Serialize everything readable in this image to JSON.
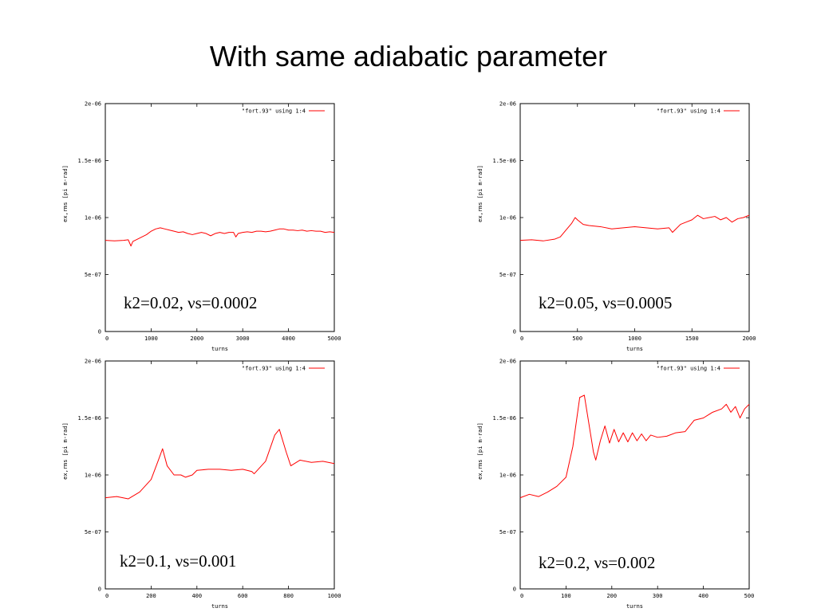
{
  "slide": {
    "title": "With same adiabatic parameter"
  },
  "chart_data": [
    {
      "type": "line",
      "annotation": "k2=0.02, νs=0.0002",
      "xlabel": "turns",
      "ylabel": "ex,rms [pi m-rad]",
      "xlim": [
        0,
        5000
      ],
      "ylim": [
        0,
        2e-06
      ],
      "xticks": [
        0,
        1000,
        2000,
        3000,
        4000,
        5000
      ],
      "xtick_labels": [
        "0",
        "1000",
        "2000",
        "3000",
        "4000",
        "5000"
      ],
      "yticks": [
        0,
        5e-07,
        1e-06,
        1.5e-06,
        2e-06
      ],
      "ytick_labels": [
        "0",
        "5e-07",
        "1e-06",
        "1.5e-06",
        "2e-06"
      ],
      "legend_position": "top-right",
      "series": [
        {
          "name": "\"fort.93\" using 1:4",
          "color": "#ff0000",
          "x": [
            0,
            200,
            400,
            500,
            560,
            600,
            700,
            800,
            900,
            1000,
            1100,
            1200,
            1300,
            1400,
            1500,
            1600,
            1700,
            1800,
            1900,
            2000,
            2100,
            2200,
            2300,
            2400,
            2500,
            2600,
            2700,
            2800,
            2850,
            2900,
            3000,
            3100,
            3200,
            3300,
            3400,
            3500,
            3600,
            3700,
            3800,
            3900,
            4000,
            4100,
            4200,
            4300,
            4400,
            4500,
            4600,
            4700,
            4800,
            4900,
            5000
          ],
          "y": [
            8e-07,
            7.95e-07,
            8e-07,
            8.05e-07,
            7.5e-07,
            7.9e-07,
            8.1e-07,
            8.3e-07,
            8.5e-07,
            8.8e-07,
            9e-07,
            9.1e-07,
            9e-07,
            8.9e-07,
            8.8e-07,
            8.7e-07,
            8.75e-07,
            8.6e-07,
            8.5e-07,
            8.6e-07,
            8.7e-07,
            8.6e-07,
            8.4e-07,
            8.6e-07,
            8.7e-07,
            8.6e-07,
            8.7e-07,
            8.7e-07,
            8.3e-07,
            8.6e-07,
            8.7e-07,
            8.75e-07,
            8.7e-07,
            8.8e-07,
            8.8e-07,
            8.75e-07,
            8.8e-07,
            8.9e-07,
            9e-07,
            9e-07,
            8.9e-07,
            8.9e-07,
            8.85e-07,
            8.9e-07,
            8.8e-07,
            8.85e-07,
            8.8e-07,
            8.8e-07,
            8.7e-07,
            8.75e-07,
            8.7e-07
          ]
        }
      ]
    },
    {
      "type": "line",
      "annotation": "k2=0.05, νs=0.0005",
      "xlabel": "turns",
      "ylabel": "ex,rms [pi m-rad]",
      "xlim": [
        0,
        2000
      ],
      "ylim": [
        0,
        2e-06
      ],
      "xticks": [
        0,
        500,
        1000,
        1500,
        2000
      ],
      "xtick_labels": [
        "0",
        "500",
        "1000",
        "1500",
        "2000"
      ],
      "yticks": [
        0,
        5e-07,
        1e-06,
        1.5e-06,
        2e-06
      ],
      "ytick_labels": [
        "0",
        "5e-07",
        "1e-06",
        "1.5e-06",
        "2e-06"
      ],
      "legend_position": "top-right",
      "series": [
        {
          "name": "\"fort.93\" using 1:4",
          "color": "#ff0000",
          "x": [
            0,
            100,
            200,
            300,
            350,
            400,
            450,
            480,
            500,
            550,
            600,
            700,
            800,
            900,
            1000,
            1100,
            1200,
            1300,
            1330,
            1400,
            1450,
            1500,
            1550,
            1600,
            1650,
            1700,
            1750,
            1800,
            1850,
            1900,
            1950,
            2000
          ],
          "y": [
            8e-07,
            8.05e-07,
            7.95e-07,
            8.1e-07,
            8.3e-07,
            8.9e-07,
            9.5e-07,
            1e-06,
            9.8e-07,
            9.4e-07,
            9.3e-07,
            9.2e-07,
            9e-07,
            9.1e-07,
            9.2e-07,
            9.1e-07,
            9e-07,
            9.1e-07,
            8.7e-07,
            9.4e-07,
            9.6e-07,
            9.8e-07,
            1.02e-06,
            9.9e-07,
            1e-06,
            1.01e-06,
            9.8e-07,
            1e-06,
            9.6e-07,
            9.9e-07,
            1e-06,
            1.02e-06
          ]
        }
      ]
    },
    {
      "type": "line",
      "annotation": "k2=0.1, νs=0.001",
      "xlabel": "turns",
      "ylabel": "ex,rms [pi m-rad]",
      "xlim": [
        0,
        1000
      ],
      "ylim": [
        0,
        2e-06
      ],
      "xticks": [
        0,
        200,
        400,
        600,
        800,
        1000
      ],
      "xtick_labels": [
        "0",
        "200",
        "400",
        "600",
        "800",
        "1000"
      ],
      "yticks": [
        0,
        5e-07,
        1e-06,
        1.5e-06,
        2e-06
      ],
      "ytick_labels": [
        "0",
        "5e-07",
        "1e-06",
        "1.5e-06",
        "2e-06"
      ],
      "legend_position": "top-right",
      "series": [
        {
          "name": "\"fort.93\" using 1:4",
          "color": "#ff0000",
          "x": [
            0,
            50,
            100,
            150,
            200,
            230,
            250,
            270,
            300,
            330,
            350,
            380,
            400,
            450,
            500,
            550,
            600,
            640,
            650,
            700,
            740,
            760,
            790,
            810,
            850,
            900,
            950,
            1000
          ],
          "y": [
            8e-07,
            8.1e-07,
            7.9e-07,
            8.5e-07,
            9.6e-07,
            1.12e-06,
            1.23e-06,
            1.08e-06,
            1e-06,
            1e-06,
            9.8e-07,
            1e-06,
            1.04e-06,
            1.05e-06,
            1.05e-06,
            1.04e-06,
            1.05e-06,
            1.03e-06,
            1.01e-06,
            1.12e-06,
            1.35e-06,
            1.4e-06,
            1.2e-06,
            1.08e-06,
            1.13e-06,
            1.11e-06,
            1.12e-06,
            1.1e-06
          ]
        }
      ]
    },
    {
      "type": "line",
      "annotation": "k2=0.2, νs=0.002",
      "xlabel": "turns",
      "ylabel": "ex,rms [pi m-rad]",
      "xlim": [
        0,
        500
      ],
      "ylim": [
        0,
        2e-06
      ],
      "xticks": [
        0,
        100,
        200,
        300,
        400,
        500
      ],
      "xtick_labels": [
        "0",
        "100",
        "200",
        "300",
        "400",
        "500"
      ],
      "yticks": [
        0,
        5e-07,
        1e-06,
        1.5e-06,
        2e-06
      ],
      "ytick_labels": [
        "0",
        "5e-07",
        "1e-06",
        "1.5e-06",
        "2e-06"
      ],
      "legend_position": "top-right",
      "series": [
        {
          "name": "\"fort.93\" using 1:4",
          "color": "#ff0000",
          "x": [
            0,
            20,
            40,
            60,
            80,
            100,
            115,
            130,
            140,
            150,
            160,
            165,
            175,
            185,
            195,
            205,
            215,
            225,
            235,
            245,
            255,
            265,
            275,
            285,
            300,
            320,
            340,
            360,
            380,
            400,
            420,
            440,
            450,
            460,
            470,
            480,
            490,
            500
          ],
          "y": [
            8e-07,
            8.3e-07,
            8.1e-07,
            8.5e-07,
            9e-07,
            9.8e-07,
            1.25e-06,
            1.68e-06,
            1.7e-06,
            1.45e-06,
            1.2e-06,
            1.13e-06,
            1.3e-06,
            1.43e-06,
            1.28e-06,
            1.4e-06,
            1.29e-06,
            1.37e-06,
            1.29e-06,
            1.37e-06,
            1.3e-06,
            1.36e-06,
            1.3e-06,
            1.35e-06,
            1.33e-06,
            1.34e-06,
            1.37e-06,
            1.38e-06,
            1.48e-06,
            1.5e-06,
            1.55e-06,
            1.58e-06,
            1.62e-06,
            1.55e-06,
            1.6e-06,
            1.5e-06,
            1.58e-06,
            1.62e-06
          ]
        }
      ]
    }
  ]
}
